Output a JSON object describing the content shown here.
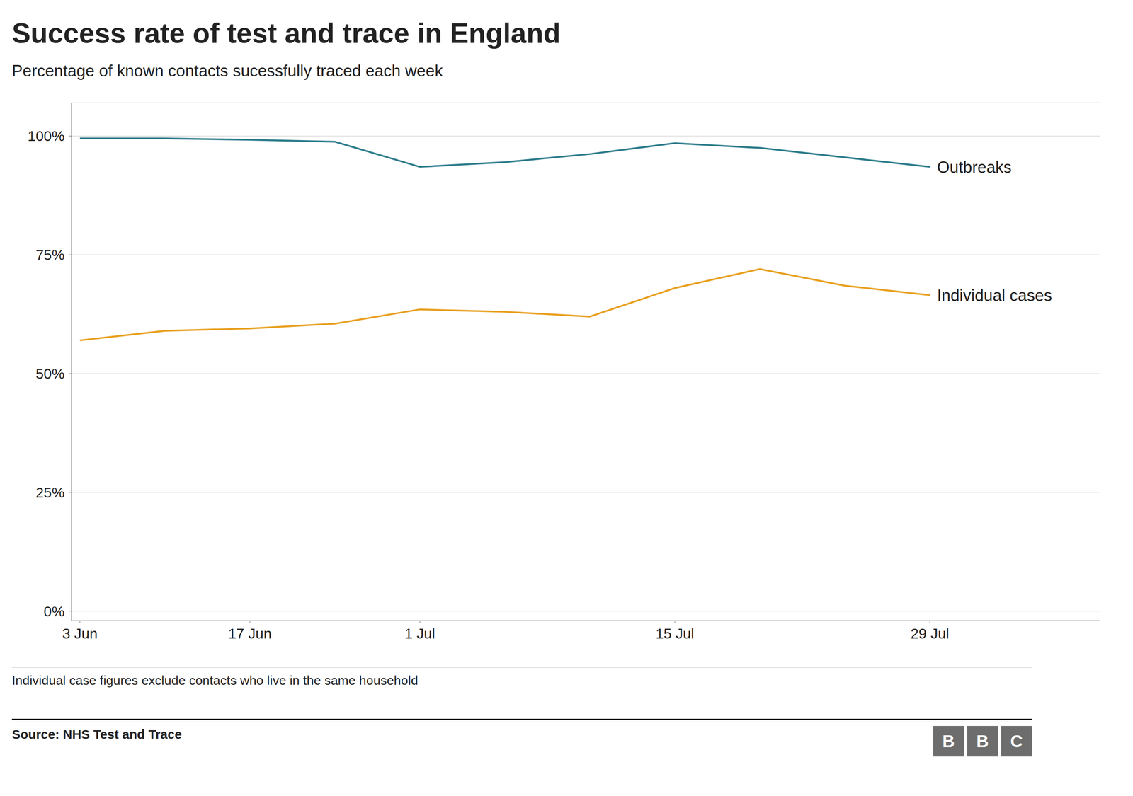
{
  "chart_data": {
    "type": "line",
    "title": "Success rate of test and trace in England",
    "subtitle": "Percentage of known contacts sucessfully traced each week",
    "footnote": "Individual case figures exclude contacts who live in the same household",
    "source": "Source: NHS Test and Trace",
    "logo": "BBC",
    "x": [
      0,
      1,
      2,
      3,
      4,
      5,
      6,
      7,
      8,
      9,
      10
    ],
    "series": [
      {
        "name": "Outbreaks",
        "color": "#2e7d8c",
        "values": [
          99.5,
          99.5,
          99.2,
          98.8,
          93.5,
          94.5,
          96.2,
          98.5,
          97.5,
          95.5,
          93.5
        ]
      },
      {
        "name": "Individual cases",
        "color": "#e8a020",
        "values": [
          57.0,
          59.0,
          59.5,
          60.5,
          63.5,
          63.0,
          62.0,
          68.0,
          72.0,
          68.5,
          66.5
        ]
      }
    ],
    "xlim": [
      -0.1,
      12.0
    ],
    "xticks": [
      {
        "value": 0,
        "label": "3 Jun"
      },
      {
        "value": 2,
        "label": "17 Jun"
      },
      {
        "value": 4,
        "label": "1 Jul"
      },
      {
        "value": 7,
        "label": "15 Jul"
      },
      {
        "value": 10,
        "label": "29 Jul"
      }
    ],
    "ylim": [
      -2,
      107
    ],
    "yticks": [
      {
        "value": 0,
        "label": "0%"
      },
      {
        "value": 25,
        "label": "25%"
      },
      {
        "value": 50,
        "label": "50%"
      },
      {
        "value": 75,
        "label": "75%"
      },
      {
        "value": 100,
        "label": "100%"
      }
    ],
    "grid": true
  }
}
